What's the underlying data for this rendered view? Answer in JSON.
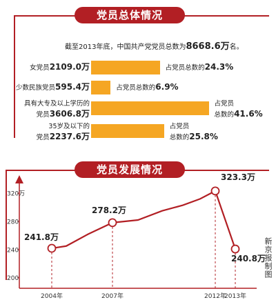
{
  "overview": {
    "banner": "党员总体情况",
    "summary_prefix": "截至2013年底，中国共产党党员总数为",
    "summary_total": "8668.6万",
    "summary_suffix": "名。",
    "stats": [
      {
        "label": "女党员",
        "value": "2109.0万",
        "share_label": "占党员总数的",
        "share_value": "24.3%",
        "percent": 24.3
      },
      {
        "label": "少数民族党员",
        "value": "595.4万",
        "share_label": "占党员总数的",
        "share_value": "6.9%",
        "percent": 6.9
      },
      {
        "label_line1": "具有大专及以上学历的",
        "label_line2": "党员",
        "value": "3606.8万",
        "share_line1": "占党员",
        "share_line2": "总数的",
        "share_value": "41.6%",
        "percent": 41.6
      },
      {
        "label_line1": "35岁及以下的",
        "label_line2": "党员",
        "value": "2237.6万",
        "share_line1": "占党员",
        "share_line2": "总数的",
        "share_value": "25.8%",
        "percent": 25.8
      }
    ]
  },
  "development": {
    "banner": "党员发展情况"
  },
  "credit": "新京报制图",
  "colors": {
    "accent": "#b21f24",
    "bar": "#f5a623"
  },
  "chart_data": {
    "type": "line",
    "title": "",
    "xlabel": "",
    "ylabel": "",
    "x": [
      2004,
      2005,
      2006,
      2007,
      2008,
      2009,
      2010,
      2011,
      2012,
      2013
    ],
    "x_tick_labels": [
      "2004年",
      "2007年",
      "2012年",
      "2013年"
    ],
    "x_ticks": [
      2004,
      2007,
      2012,
      2013
    ],
    "y_ticks": [
      200,
      240,
      280,
      320
    ],
    "y_tick_labels": [
      "200",
      "240",
      "280",
      "320万"
    ],
    "ylim": [
      185,
      330
    ],
    "series": [
      {
        "values": [
          241.8,
          245,
          262,
          278.2,
          282,
          295,
          303,
          312,
          323.3,
          240.8
        ]
      }
    ],
    "point_labels": [
      {
        "x": 2004,
        "value": 241.8,
        "text": "241.8万"
      },
      {
        "x": 2007,
        "value": 278.2,
        "text": "278.2万"
      },
      {
        "x": 2012,
        "value": 323.3,
        "text": "323.3万"
      },
      {
        "x": 2013,
        "value": 240.8,
        "text": "240.8万"
      }
    ],
    "grid": false
  }
}
